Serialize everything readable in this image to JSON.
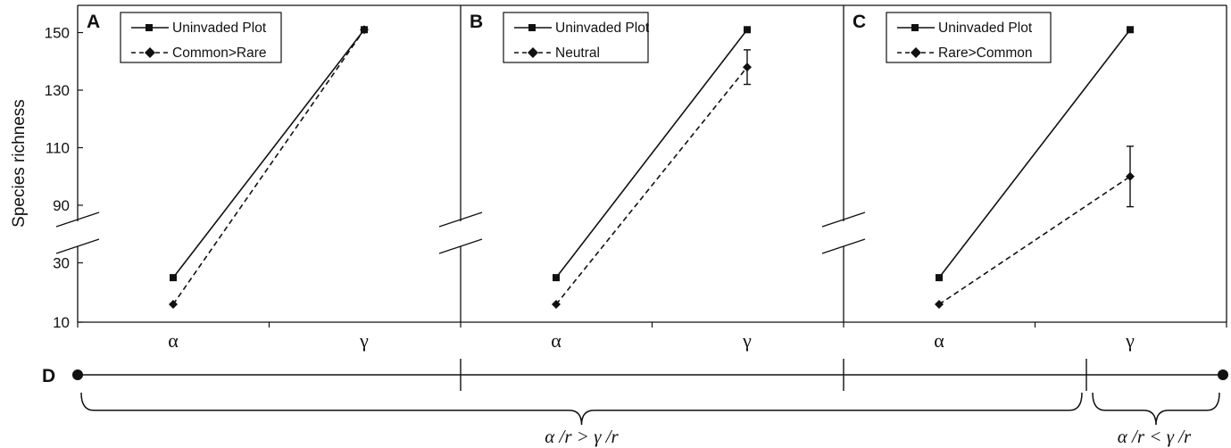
{
  "chart_data": {
    "type": "line",
    "ylabel": "Species richness",
    "y_ticks": [
      "10",
      "30",
      "90",
      "110",
      "130",
      "150"
    ],
    "categories": [
      "α",
      "γ"
    ],
    "panels": [
      {
        "letter": "A",
        "series": [
          {
            "name": "Uninvaded Plot",
            "style": "solid",
            "marker": "square",
            "values": [
              25,
              151
            ]
          },
          {
            "name": "Common>Rare",
            "style": "dashed",
            "marker": "diamond",
            "values": [
              16,
              151
            ]
          }
        ]
      },
      {
        "letter": "B",
        "series": [
          {
            "name": "Uninvaded Plot",
            "style": "solid",
            "marker": "square",
            "values": [
              25,
              151
            ]
          },
          {
            "name": "Neutral",
            "style": "dashed",
            "marker": "diamond",
            "values": [
              16,
              138
            ],
            "error_gamma": 6
          }
        ]
      },
      {
        "letter": "C",
        "series": [
          {
            "name": "Uninvaded Plot",
            "style": "solid",
            "marker": "square",
            "values": [
              25,
              151
            ]
          },
          {
            "name": "Rare>Common",
            "style": "dashed",
            "marker": "diamond",
            "values": [
              16,
              100
            ],
            "error_gamma": 10.5
          }
        ]
      }
    ],
    "bottom": {
      "letter": "D",
      "left_label": "α /r > γ  /r",
      "right_label": "α /r < γ  /r"
    }
  }
}
